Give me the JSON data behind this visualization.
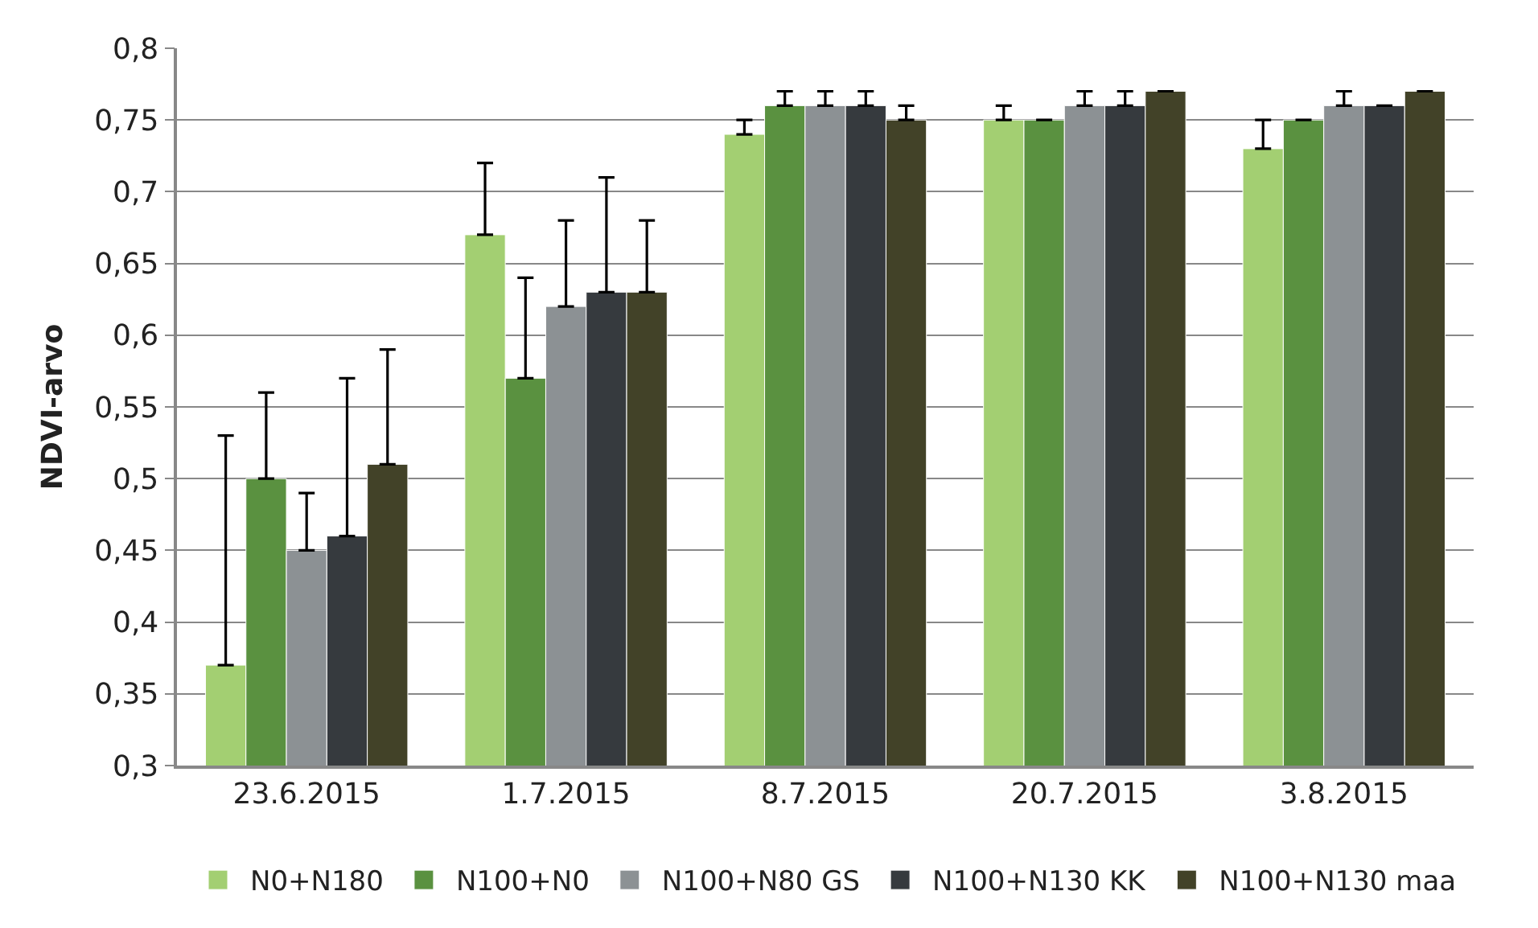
{
  "chart_data": {
    "type": "bar",
    "ylabel": "NDVI-arvo",
    "categories": [
      "23.6.2015",
      "1.7.2015",
      "8.7.2015",
      "20.7.2015",
      "3.8.2015"
    ],
    "series": [
      {
        "name": "N0+N180",
        "color": "#a3cf72",
        "values": [
          0.37,
          0.67,
          0.74,
          0.75,
          0.73
        ],
        "errors": [
          [
            0.37,
            0.53
          ],
          [
            0.67,
            0.72
          ],
          [
            0.74,
            0.75
          ],
          [
            0.75,
            0.76
          ],
          [
            0.73,
            0.75
          ]
        ]
      },
      {
        "name": "N100+N0",
        "color": "#5a9140",
        "values": [
          0.5,
          0.57,
          0.76,
          0.75,
          0.75
        ],
        "errors": [
          [
            0.5,
            0.56
          ],
          [
            0.57,
            0.64
          ],
          [
            0.76,
            0.77
          ],
          [
            0.75,
            0.75
          ],
          [
            0.75,
            0.75
          ]
        ]
      },
      {
        "name": "N100+N80 GS",
        "color": "#8c9194",
        "values": [
          0.45,
          0.62,
          0.76,
          0.76,
          0.76
        ],
        "errors": [
          [
            0.45,
            0.49
          ],
          [
            0.62,
            0.68
          ],
          [
            0.76,
            0.77
          ],
          [
            0.76,
            0.77
          ],
          [
            0.76,
            0.77
          ]
        ]
      },
      {
        "name": "N100+N130 KK",
        "color": "#363a3e",
        "values": [
          0.46,
          0.63,
          0.76,
          0.76,
          0.76
        ],
        "errors": [
          [
            0.46,
            0.57
          ],
          [
            0.63,
            0.71
          ],
          [
            0.76,
            0.77
          ],
          [
            0.76,
            0.77
          ],
          [
            0.76,
            0.76
          ]
        ]
      },
      {
        "name": "N100+N130 maa",
        "color": "#424228",
        "values": [
          0.51,
          0.63,
          0.75,
          0.77,
          0.77
        ],
        "errors": [
          [
            0.51,
            0.59
          ],
          [
            0.63,
            0.68
          ],
          [
            0.75,
            0.76
          ],
          [
            0.77,
            0.77
          ],
          [
            0.77,
            0.77
          ]
        ]
      }
    ],
    "ylim": [
      0.3,
      0.8
    ],
    "yticks": [
      {
        "value": 0.3,
        "label": "0,3"
      },
      {
        "value": 0.35,
        "label": "0,35"
      },
      {
        "value": 0.4,
        "label": "0,4"
      },
      {
        "value": 0.45,
        "label": "0,45"
      },
      {
        "value": 0.5,
        "label": "0,5"
      },
      {
        "value": 0.55,
        "label": "0,55"
      },
      {
        "value": 0.6,
        "label": "0,6"
      },
      {
        "value": 0.65,
        "label": "0,65"
      },
      {
        "value": 0.7,
        "label": "0,7"
      },
      {
        "value": 0.75,
        "label": "0,75"
      },
      {
        "value": 0.8,
        "label": "0,8"
      }
    ],
    "grid": "y",
    "legend": "bottom"
  }
}
